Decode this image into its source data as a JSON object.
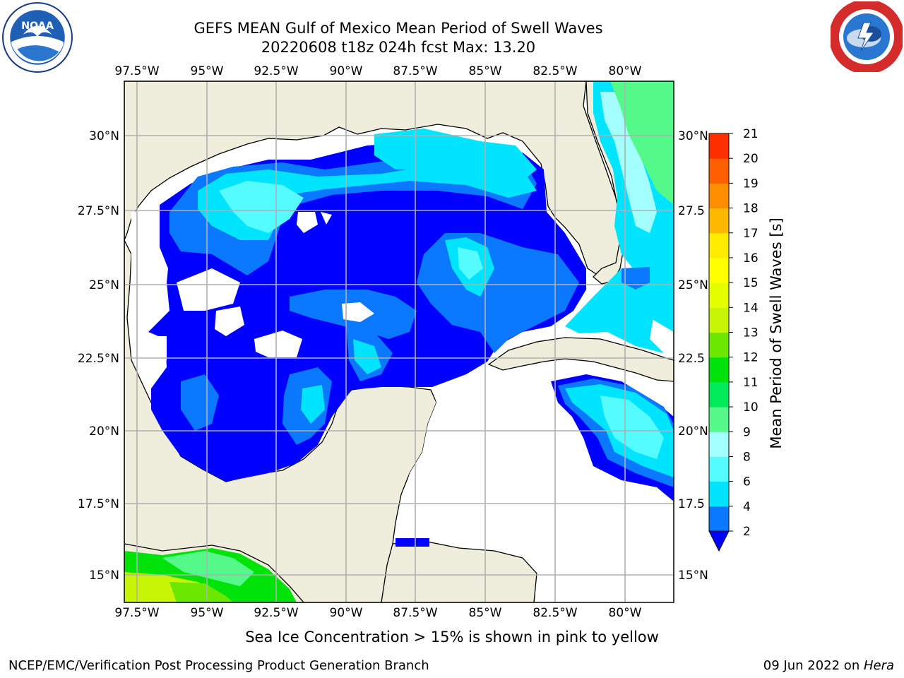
{
  "header": {
    "title_line1": "GEFS MEAN Gulf of Mexico Mean Period of Swell Waves",
    "title_line2": "20220608 t18z 024h fcst   Max: 13.20"
  },
  "logos": {
    "left": {
      "name": "noaa-logo",
      "text": "NOAA",
      "ring_text": "NATIONAL OCEANIC AND ATMOSPHERIC ADMINISTRATION · U.S. DEPARTMENT OF COMMERCE"
    },
    "right": {
      "name": "nws-logo",
      "ring_text": "NATIONAL WEATHER SERVICE"
    }
  },
  "map": {
    "lon_labels": [
      "97.5°W",
      "95°W",
      "92.5°W",
      "90°W",
      "87.5°W",
      "85°W",
      "82.5°W",
      "80°W"
    ],
    "lat_labels_left": [
      "30°N",
      "27.5°N",
      "25°N",
      "22.5°N",
      "20°N",
      "17.5°N",
      "15°N"
    ],
    "lat_labels_right": [
      "30°N",
      "27.5",
      "25°N",
      "22.5",
      "20°N",
      "17.5",
      "15°N"
    ],
    "land_color": "#efeedc",
    "grid_color": "#b0b0b0"
  },
  "colorbar": {
    "title": "Mean Period of Swell Waves [s]",
    "ticks": [
      "2",
      "4",
      "6",
      "8",
      "9",
      "10",
      "11",
      "12",
      "13",
      "14",
      "15",
      "16",
      "17",
      "18",
      "19",
      "20",
      "21"
    ],
    "colors": [
      "#0a78ff",
      "#00e4ff",
      "#54fbff",
      "#a4ffff",
      "#55f98a",
      "#00ea5a",
      "#00e30a",
      "#6be700",
      "#c7f505",
      "#e3ff00",
      "#ffff00",
      "#ffec00",
      "#ffb900",
      "#ff8d00",
      "#ff5f00",
      "#ff2e00"
    ],
    "extend_color": "#0000ff"
  },
  "footer": {
    "subtitle": "Sea Ice Concentration > 15% is shown in pink to yellow",
    "credit": "NCEP/EMC/Verification Post Processing Product Generation Branch",
    "date_prefix": "09 Jun 2022 on ",
    "host": "Hera"
  }
}
